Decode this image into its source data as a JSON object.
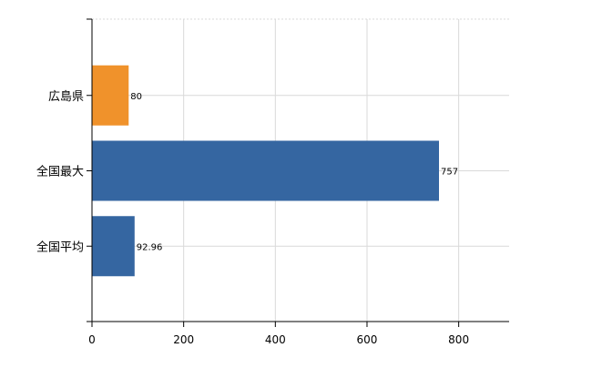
{
  "chart_data": {
    "type": "bar",
    "orientation": "horizontal",
    "categories": [
      "広島県",
      "全国最大",
      "全国平均"
    ],
    "values": [
      80,
      757,
      92.96
    ],
    "data_labels": [
      "80",
      "757",
      "92.96"
    ],
    "xlim": [
      0,
      910
    ],
    "x_ticks": [
      0,
      200,
      400,
      600,
      800
    ],
    "x_tick_labels": [
      "0",
      "200",
      "400",
      "600",
      "800"
    ],
    "grid": true,
    "legend": "none",
    "colors": [
      "#f0922b",
      "#3566a1",
      "#3566a1"
    ]
  }
}
